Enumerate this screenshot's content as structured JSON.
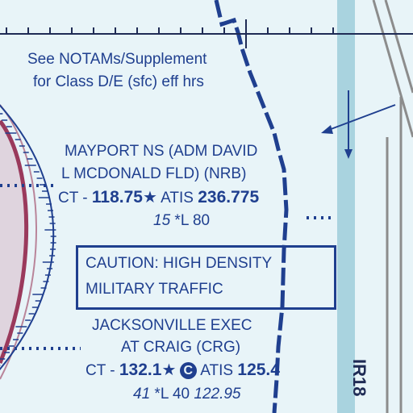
{
  "notam": {
    "line1": "See NOTAMs/Supplement",
    "line2": "for Class D/E (sfc) eff hrs"
  },
  "mayport": {
    "name_line1": "MAYPORT NS (ADM DAVID",
    "name_line2": "L MCDONALD FLD) (NRB)",
    "ct_label": "CT - ",
    "ct_freq": "118.75",
    "star": "★",
    "atis_label": " ATIS ",
    "atis_freq": "236.775",
    "elevation": "15",
    "lighting": " *L 80"
  },
  "caution": {
    "line1": "CAUTION: HIGH DENSITY",
    "line2": "MILITARY TRAFFIC"
  },
  "jax": {
    "name_line1": "JACKSONVILLE EXEC",
    "name_line2": "AT CRAIG (CRG)",
    "ct_label": "CT - ",
    "ct_freq": "132.1",
    "star": "★",
    "c_symbol": "C",
    "atis_label": "ATIS ",
    "atis_freq": "125.4",
    "elevation": "41",
    "lighting": " *L 40 ",
    "ctaf": "122.95"
  },
  "route": {
    "label": "IR18"
  },
  "colors": {
    "background": "#e8f4f8",
    "chart_blue": "#1f3f8f",
    "class_c_magenta": "#9a3a5c",
    "water_band": "#a9d3df"
  }
}
